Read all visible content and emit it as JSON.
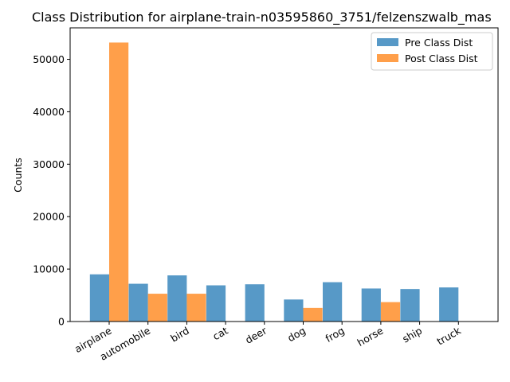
{
  "chart_data": {
    "type": "bar",
    "title": "Class Distribution for airplane-train-n03595860_3751/felzenszwalb_mas",
    "xlabel": "",
    "ylabel": "Counts",
    "ylim": [
      0,
      56000
    ],
    "yticks": [
      0,
      10000,
      20000,
      30000,
      40000,
      50000
    ],
    "categories": [
      "airplane",
      "automobile",
      "bird",
      "cat",
      "deer",
      "dog",
      "frog",
      "horse",
      "ship",
      "truck"
    ],
    "series": [
      {
        "name": "Pre Class Dist",
        "color": "#1f77b4",
        "values": [
          9000,
          7200,
          8800,
          6900,
          7100,
          4200,
          7500,
          6300,
          6200,
          6500
        ]
      },
      {
        "name": "Post Class Dist",
        "color": "#ff7f0e",
        "values": [
          53200,
          5300,
          5300,
          0,
          0,
          2600,
          0,
          3700,
          0,
          0
        ]
      }
    ],
    "legend_position": "top-right",
    "grid": false
  }
}
